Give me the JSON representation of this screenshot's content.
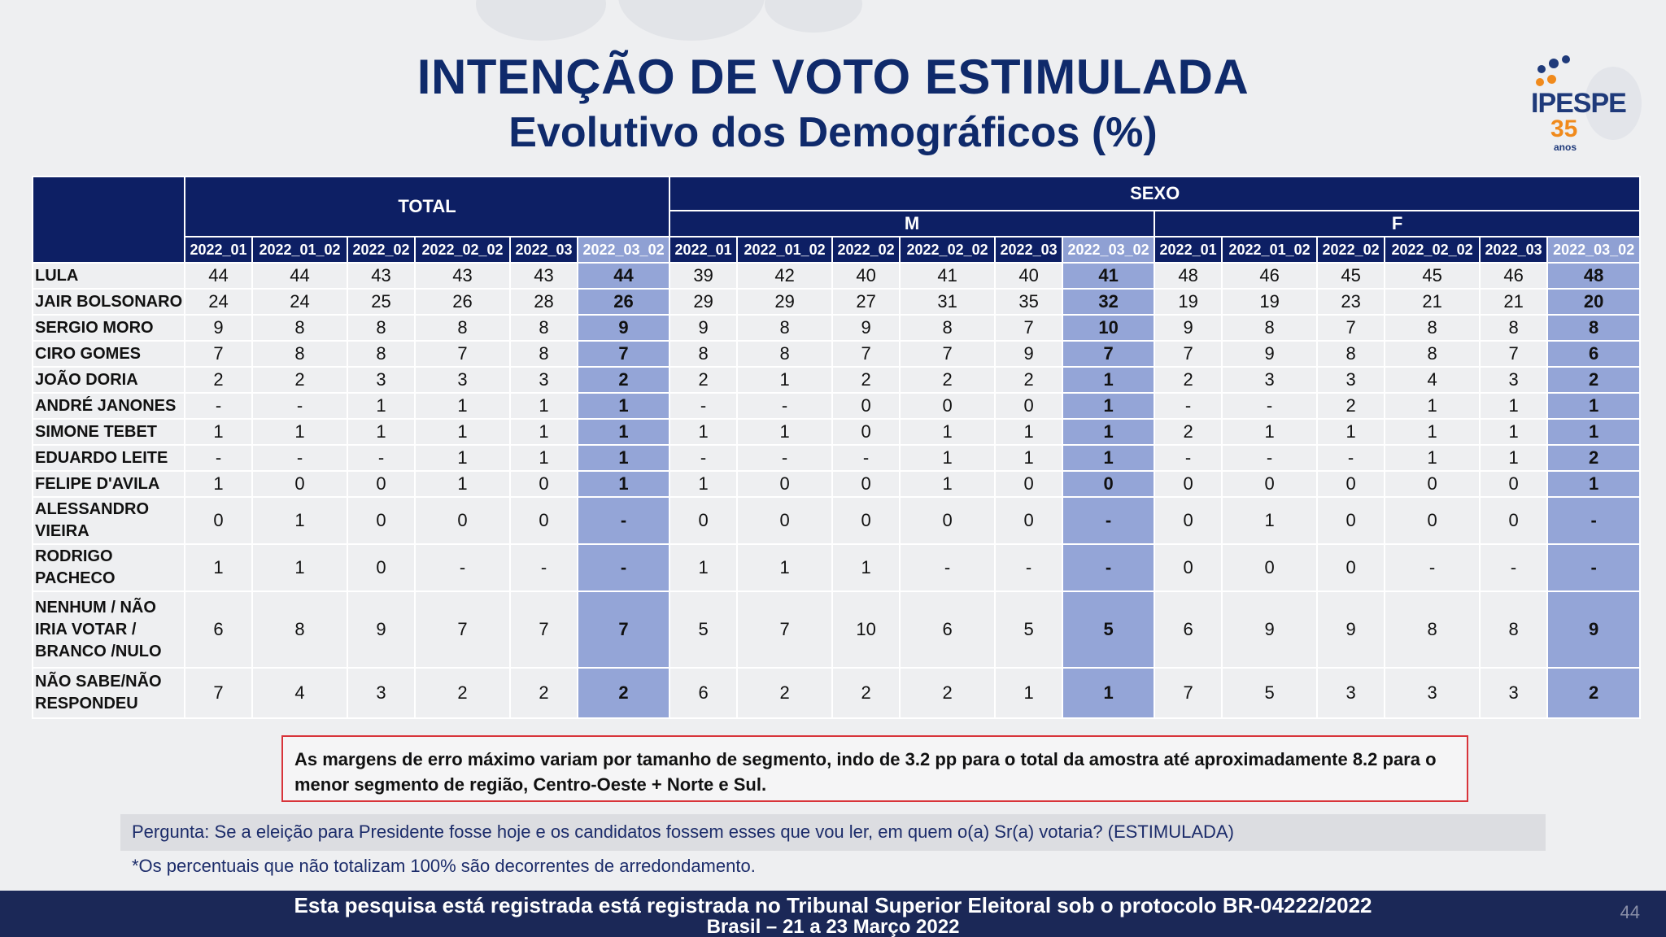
{
  "title": "INTENÇÃO DE VOTO ESTIMULADA",
  "subtitle": "Evolutivo dos Demográficos (%)",
  "logo": {
    "name": "IPESPE",
    "years": "35",
    "anos": "anos",
    "colors": {
      "primary": "#1f3a7a",
      "accent": "#f08a1c"
    }
  },
  "table": {
    "group_total": "TOTAL",
    "group_sexo": "SEXO",
    "sub_m": "M",
    "sub_f": "F",
    "periods": [
      "2022_01",
      "2022_01_02",
      "2022_02",
      "2022_02_02",
      "2022_03",
      "2022_03_02"
    ],
    "rows": [
      {
        "name": "LULA",
        "values": [
          "44",
          "44",
          "43",
          "43",
          "43",
          "44",
          "39",
          "42",
          "40",
          "41",
          "40",
          "41",
          "48",
          "46",
          "45",
          "45",
          "46",
          "48"
        ]
      },
      {
        "name": "JAIR BOLSONARO",
        "values": [
          "24",
          "24",
          "25",
          "26",
          "28",
          "26",
          "29",
          "29",
          "27",
          "31",
          "35",
          "32",
          "19",
          "19",
          "23",
          "21",
          "21",
          "20"
        ]
      },
      {
        "name": "SERGIO MORO",
        "values": [
          "9",
          "8",
          "8",
          "8",
          "8",
          "9",
          "9",
          "8",
          "9",
          "8",
          "7",
          "10",
          "9",
          "8",
          "7",
          "8",
          "8",
          "8"
        ]
      },
      {
        "name": "CIRO GOMES",
        "values": [
          "7",
          "8",
          "8",
          "7",
          "8",
          "7",
          "8",
          "8",
          "7",
          "7",
          "9",
          "7",
          "7",
          "9",
          "8",
          "8",
          "7",
          "6"
        ]
      },
      {
        "name": "JOÃO DORIA",
        "values": [
          "2",
          "2",
          "3",
          "3",
          "3",
          "2",
          "2",
          "1",
          "2",
          "2",
          "2",
          "1",
          "2",
          "3",
          "3",
          "4",
          "3",
          "2"
        ]
      },
      {
        "name": "ANDRÉ JANONES",
        "values": [
          "-",
          "-",
          "1",
          "1",
          "1",
          "1",
          "-",
          "-",
          "0",
          "0",
          "0",
          "1",
          "-",
          "-",
          "2",
          "1",
          "1",
          "1"
        ]
      },
      {
        "name": "SIMONE TEBET",
        "values": [
          "1",
          "1",
          "1",
          "1",
          "1",
          "1",
          "1",
          "1",
          "0",
          "1",
          "1",
          "1",
          "2",
          "1",
          "1",
          "1",
          "1",
          "1"
        ]
      },
      {
        "name": "EDUARDO LEITE",
        "values": [
          "-",
          "-",
          "-",
          "1",
          "1",
          "1",
          "-",
          "-",
          "-",
          "1",
          "1",
          "1",
          "-",
          "-",
          "-",
          "1",
          "1",
          "2"
        ]
      },
      {
        "name": "FELIPE D'AVILA",
        "values": [
          "1",
          "0",
          "0",
          "1",
          "0",
          "1",
          "1",
          "0",
          "0",
          "1",
          "0",
          "0",
          "0",
          "0",
          "0",
          "0",
          "0",
          "1"
        ]
      },
      {
        "name": "ALESSANDRO VIEIRA",
        "values": [
          "0",
          "1",
          "0",
          "0",
          "0",
          "-",
          "0",
          "0",
          "0",
          "0",
          "0",
          "-",
          "0",
          "1",
          "0",
          "0",
          "0",
          "-"
        ]
      },
      {
        "name": "RODRIGO PACHECO",
        "values": [
          "1",
          "1",
          "0",
          "-",
          "-",
          "-",
          "1",
          "1",
          "1",
          "-",
          "-",
          "-",
          "0",
          "0",
          "0",
          "-",
          "-",
          "-"
        ]
      },
      {
        "name": "NENHUM / NÃO IRIA VOTAR / BRANCO /NULO",
        "values": [
          "6",
          "8",
          "9",
          "7",
          "7",
          "7",
          "5",
          "7",
          "10",
          "6",
          "5",
          "5",
          "6",
          "9",
          "9",
          "8",
          "8",
          "9"
        ]
      },
      {
        "name": "NÃO SABE/NÃO RESPONDEU",
        "values": [
          "7",
          "4",
          "3",
          "2",
          "2",
          "2",
          "6",
          "2",
          "2",
          "2",
          "1",
          "1",
          "7",
          "5",
          "3",
          "3",
          "3",
          "2"
        ]
      }
    ]
  },
  "note": "As margens de erro máximo variam por tamanho de segmento, indo de 3.2 pp para o total da amostra até aproximadamente 8.2 para o menor segmento de região, Centro-Oeste + Norte e Sul.",
  "question": "Pergunta:  Se a eleição para Presidente fosse hoje e os candidatos fossem esses que vou ler, em quem o(a) Sr(a) votaria? (ESTIMULADA)",
  "footnote": "*Os percentuais que não totalizam 100% são decorrentes de arredondamento.",
  "footer": {
    "line1": "Esta pesquisa está registrada está registrada no Tribunal Superior Eleitoral sob o protocolo BR-04222/2022",
    "line2": "Brasil – 21 a 23 Março 2022",
    "page": "44"
  }
}
